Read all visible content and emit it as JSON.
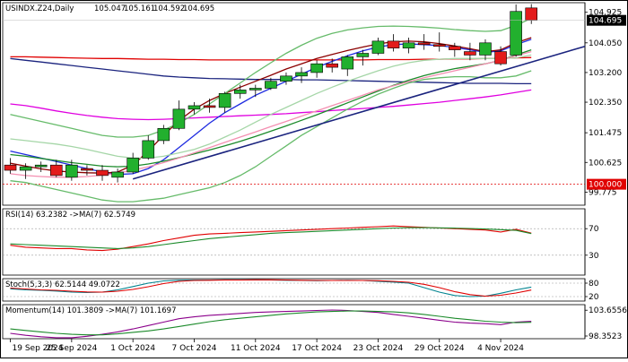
{
  "chart_data": [
    {
      "type": "candlestick",
      "title": "USINDX.Z24,Daily",
      "ohlc_readout": [
        "105.047",
        "105.161",
        "104.592",
        "104.695"
      ],
      "last_price": "104.695",
      "last_price_color": "#000000",
      "ylim": [
        99.4,
        105.2
      ],
      "y_ticks": [
        "104.925",
        "104.050",
        "103.200",
        "102.350",
        "101.475",
        "100.625",
        "99.775"
      ],
      "y_tick_values": [
        104.925,
        104.05,
        103.2,
        102.35,
        101.475,
        100.625,
        99.775
      ],
      "level_label": "100.000",
      "level_value": 100.0,
      "level_color": "#e00000",
      "grid": false,
      "x_ticks": [
        "19 Sep 2024",
        "25 Sep 2024",
        "1 Oct 2024",
        "7 Oct 2024",
        "11 Oct 2024",
        "17 Oct 2024",
        "23 Oct 2024",
        "29 Oct 2024",
        "4 Nov 2024"
      ],
      "x_tick_index": [
        0,
        4,
        8,
        12,
        16,
        20,
        24,
        28,
        32
      ],
      "colors": {
        "up": "#22b02e",
        "down": "#e31b1b"
      },
      "candles": [
        {
          "o": 100.55,
          "h": 100.75,
          "l": 100.3,
          "c": 100.4
        },
        {
          "o": 100.4,
          "h": 100.6,
          "l": 100.15,
          "c": 100.5
        },
        {
          "o": 100.5,
          "h": 100.65,
          "l": 100.35,
          "c": 100.55
        },
        {
          "o": 100.55,
          "h": 100.7,
          "l": 100.2,
          "c": 100.25
        },
        {
          "o": 100.2,
          "h": 100.7,
          "l": 100.1,
          "c": 100.55
        },
        {
          "o": 100.45,
          "h": 100.55,
          "l": 100.25,
          "c": 100.4
        },
        {
          "o": 100.4,
          "h": 100.55,
          "l": 100.1,
          "c": 100.25
        },
        {
          "o": 100.2,
          "h": 100.45,
          "l": 100.05,
          "c": 100.35
        },
        {
          "o": 100.35,
          "h": 100.9,
          "l": 100.3,
          "c": 100.75
        },
        {
          "o": 100.75,
          "h": 101.4,
          "l": 100.7,
          "c": 101.25
        },
        {
          "o": 101.25,
          "h": 101.7,
          "l": 101.15,
          "c": 101.6
        },
        {
          "o": 101.6,
          "h": 102.4,
          "l": 101.55,
          "c": 102.15
        },
        {
          "o": 102.15,
          "h": 102.35,
          "l": 102.0,
          "c": 102.25
        },
        {
          "o": 102.25,
          "h": 102.45,
          "l": 102.05,
          "c": 102.2
        },
        {
          "o": 102.2,
          "h": 102.65,
          "l": 102.05,
          "c": 102.6
        },
        {
          "o": 102.6,
          "h": 102.85,
          "l": 102.45,
          "c": 102.7
        },
        {
          "o": 102.7,
          "h": 102.85,
          "l": 102.5,
          "c": 102.75
        },
        {
          "o": 102.75,
          "h": 103.05,
          "l": 102.7,
          "c": 102.95
        },
        {
          "o": 102.95,
          "h": 103.2,
          "l": 102.85,
          "c": 103.1
        },
        {
          "o": 103.1,
          "h": 103.35,
          "l": 102.9,
          "c": 103.2
        },
        {
          "o": 103.2,
          "h": 103.55,
          "l": 103.05,
          "c": 103.45
        },
        {
          "o": 103.45,
          "h": 103.6,
          "l": 103.2,
          "c": 103.35
        },
        {
          "o": 103.3,
          "h": 103.7,
          "l": 103.1,
          "c": 103.65
        },
        {
          "o": 103.65,
          "h": 103.85,
          "l": 103.4,
          "c": 103.75
        },
        {
          "o": 103.75,
          "h": 104.2,
          "l": 103.7,
          "c": 104.1
        },
        {
          "o": 104.1,
          "h": 104.3,
          "l": 103.8,
          "c": 103.9
        },
        {
          "o": 103.9,
          "h": 104.2,
          "l": 103.75,
          "c": 104.05
        },
        {
          "o": 104.05,
          "h": 104.3,
          "l": 103.85,
          "c": 104.0
        },
        {
          "o": 104.0,
          "h": 104.35,
          "l": 103.8,
          "c": 103.95
        },
        {
          "o": 103.95,
          "h": 104.05,
          "l": 103.65,
          "c": 103.85
        },
        {
          "o": 103.8,
          "h": 104.05,
          "l": 103.55,
          "c": 103.7
        },
        {
          "o": 103.7,
          "h": 104.15,
          "l": 103.55,
          "c": 104.05
        },
        {
          "o": 103.8,
          "h": 103.95,
          "l": 103.4,
          "c": 103.45
        },
        {
          "o": 103.7,
          "h": 105.15,
          "l": 103.65,
          "c": 104.95
        },
        {
          "o": 105.05,
          "h": 105.16,
          "l": 104.59,
          "c": 104.7
        }
      ],
      "series": [
        {
          "color": "#e00000",
          "values": [
            103.65,
            103.65,
            103.64,
            103.63,
            103.62,
            103.61,
            103.6,
            103.6,
            103.59,
            103.58,
            103.58,
            103.57,
            103.57,
            103.56,
            103.56,
            103.56,
            103.56,
            103.56,
            103.56,
            103.56,
            103.56,
            103.56,
            103.56,
            103.56,
            103.57,
            103.57,
            103.57,
            103.58,
            103.58,
            103.59,
            103.59,
            103.6,
            103.61,
            103.62,
            103.63
          ]
        },
        {
          "color": "#1a237e",
          "values": [
            103.6,
            103.55,
            103.5,
            103.45,
            103.4,
            103.35,
            103.3,
            103.25,
            103.2,
            103.15,
            103.1,
            103.07,
            103.05,
            103.03,
            103.02,
            103.01,
            103.0,
            103.0,
            103.0,
            102.99,
            102.99,
            102.98,
            102.97,
            102.96,
            102.95,
            102.94,
            102.93,
            102.92,
            102.91,
            102.9,
            102.89,
            102.89,
            102.89,
            102.88,
            102.88
          ]
        },
        {
          "color": "#e000e0",
          "values": [
            102.3,
            102.25,
            102.18,
            102.1,
            102.03,
            101.97,
            101.92,
            101.88,
            101.86,
            101.85,
            101.86,
            101.88,
            101.9,
            101.92,
            101.94,
            101.96,
            101.98,
            102.0,
            102.02,
            102.05,
            102.08,
            102.11,
            102.14,
            102.17,
            102.2,
            102.23,
            102.27,
            102.31,
            102.35,
            102.4,
            102.45,
            102.5,
            102.56,
            102.63,
            102.7
          ]
        },
        {
          "color": "#1e2be0",
          "values": [
            100.95,
            100.85,
            100.75,
            100.65,
            100.55,
            100.45,
            100.35,
            100.28,
            100.3,
            100.45,
            100.7,
            101.05,
            101.4,
            101.75,
            102.05,
            102.3,
            102.55,
            102.75,
            102.95,
            103.15,
            103.35,
            103.52,
            103.68,
            103.82,
            103.93,
            104.0,
            104.02,
            104.0,
            103.97,
            103.92,
            103.85,
            103.78,
            103.82,
            104.0,
            104.15
          ]
        },
        {
          "color": "#8b0000",
          "values": [
            100.6,
            100.52,
            100.44,
            100.38,
            100.35,
            100.33,
            100.32,
            100.35,
            100.55,
            100.95,
            101.4,
            101.82,
            102.15,
            102.4,
            102.6,
            102.78,
            102.95,
            103.12,
            103.3,
            103.45,
            103.6,
            103.72,
            103.83,
            103.93,
            104.02,
            104.08,
            104.1,
            104.08,
            104.03,
            103.96,
            103.88,
            103.8,
            103.85,
            104.05,
            104.2
          ]
        },
        {
          "color": "#1b8a2a",
          "values": [
            100.85,
            100.8,
            100.74,
            100.68,
            100.62,
            100.57,
            100.52,
            100.5,
            100.52,
            100.58,
            100.66,
            100.76,
            100.87,
            100.98,
            101.1,
            101.23,
            101.37,
            101.52,
            101.67,
            101.83,
            101.99,
            102.16,
            102.33,
            102.5,
            102.67,
            102.83,
            102.98,
            103.11,
            103.22,
            103.31,
            103.38,
            103.45,
            103.55,
            103.7,
            103.85
          ]
        },
        {
          "color": "#a5d6a7",
          "values": [
            101.3,
            101.25,
            101.2,
            101.15,
            101.08,
            101.0,
            100.9,
            100.8,
            100.75,
            100.75,
            100.8,
            100.9,
            101.0,
            101.15,
            101.35,
            101.55,
            101.78,
            102.0,
            102.2,
            102.4,
            102.6,
            102.78,
            102.95,
            103.1,
            103.25,
            103.38,
            103.48,
            103.55,
            103.58,
            103.6,
            103.6,
            103.6,
            103.6,
            103.62,
            103.7
          ]
        },
        {
          "color": "#f48fb1",
          "values": [
            100.3,
            100.25,
            100.22,
            100.2,
            100.2,
            100.22,
            100.26,
            100.32,
            100.4,
            100.5,
            100.62,
            100.75,
            100.9,
            101.05,
            101.2,
            101.35,
            101.5,
            101.65,
            101.8,
            101.95,
            102.1,
            102.25,
            102.4,
            102.55,
            102.7,
            102.82,
            102.94,
            103.05,
            103.15,
            103.25,
            103.35,
            103.45,
            103.55,
            103.68,
            103.8
          ]
        },
        {
          "color": "#66bb6a",
          "values": [
            102.0,
            101.9,
            101.8,
            101.7,
            101.6,
            101.5,
            101.4,
            101.35,
            101.35,
            101.4,
            101.55,
            101.75,
            102.0,
            102.3,
            102.6,
            102.9,
            103.2,
            103.48,
            103.75,
            103.98,
            104.18,
            104.32,
            104.42,
            104.48,
            104.52,
            104.53,
            104.52,
            104.5,
            104.47,
            104.43,
            104.4,
            104.38,
            104.4,
            104.55,
            104.75
          ]
        },
        {
          "color": "#66bb6a",
          "values": [
            100.1,
            100.05,
            99.95,
            99.85,
            99.75,
            99.65,
            99.55,
            99.5,
            99.5,
            99.55,
            99.6,
            99.7,
            99.8,
            99.9,
            100.05,
            100.25,
            100.5,
            100.8,
            101.1,
            101.4,
            101.65,
            101.9,
            102.15,
            102.38,
            102.58,
            102.75,
            102.9,
            103.0,
            103.05,
            103.08,
            103.08,
            103.05,
            103.05,
            103.1,
            103.25
          ]
        }
      ],
      "trendlines": [
        {
          "color": "#1a237e",
          "from": [
            8,
            100.15
          ],
          "to": [
            39,
            103.95
          ]
        }
      ]
    },
    {
      "type": "line",
      "title": "RSI(14) 63.2382 ->MA(7) 62.5749",
      "ylim": [
        0,
        100
      ],
      "y_ticks": [
        "70",
        "30"
      ],
      "y_tick_values": [
        70,
        30
      ],
      "levels": [
        70,
        30
      ],
      "grid": false,
      "series": [
        {
          "color": "#e00000",
          "values": [
            45,
            42,
            41,
            40,
            40,
            38,
            37,
            39,
            43,
            47,
            52,
            56,
            60,
            62,
            63,
            64,
            65,
            66,
            67,
            68,
            69,
            70,
            71,
            72,
            73,
            74,
            73,
            72,
            71,
            70,
            69,
            68,
            65,
            69,
            63.24
          ]
        },
        {
          "color": "#1b8a2a",
          "values": [
            47,
            46,
            45,
            44,
            43,
            42,
            41,
            40,
            41,
            43,
            46,
            49,
            52,
            55,
            57,
            59,
            61,
            63,
            64,
            65,
            66,
            67,
            68,
            69,
            70,
            71,
            71.5,
            71.5,
            71.2,
            70.8,
            70.2,
            69.5,
            68.5,
            67.5,
            62.57
          ]
        }
      ]
    },
    {
      "type": "line",
      "title": "Stoch(5,3,3) 62.5144 49.0722",
      "ylim": [
        0,
        100
      ],
      "y_ticks": [
        "80",
        "20"
      ],
      "y_tick_values": [
        80,
        20
      ],
      "levels": [
        80,
        20
      ],
      "grid": false,
      "series": [
        {
          "color": "#00838f",
          "values": [
            55,
            50,
            48,
            45,
            40,
            38,
            40,
            50,
            65,
            80,
            90,
            93,
            94,
            94,
            95,
            95,
            95,
            94,
            93,
            92,
            91,
            92,
            93,
            92,
            88,
            85,
            80,
            60,
            40,
            25,
            20,
            22,
            35,
            50,
            62.51
          ]
        },
        {
          "color": "#e00000",
          "values": [
            58,
            54,
            50,
            48,
            44,
            41,
            40,
            44,
            52,
            64,
            78,
            88,
            92,
            93,
            94,
            94,
            95,
            95,
            94,
            93,
            92,
            92,
            92,
            92,
            91,
            88,
            84,
            75,
            60,
            42,
            29,
            22,
            26,
            36,
            49.07
          ]
        }
      ]
    },
    {
      "type": "line",
      "title": "Momentum(14) 101.3809 ->MA(7) 101.1697",
      "ylim": [
        97.8,
        104.8
      ],
      "y_ticks": [
        "103.6556",
        "98.3523"
      ],
      "y_tick_values": [
        103.6556,
        98.3523
      ],
      "grid": false,
      "series": [
        {
          "color": "#8b008b",
          "values": [
            98.9,
            98.5,
            98.2,
            98.0,
            98.0,
            98.3,
            98.7,
            99.2,
            99.8,
            100.5,
            101.2,
            101.9,
            102.3,
            102.6,
            102.8,
            103.0,
            103.2,
            103.3,
            103.4,
            103.5,
            103.6,
            103.7,
            103.6,
            103.4,
            103.2,
            102.8,
            102.4,
            102.0,
            101.6,
            101.2,
            101.0,
            100.9,
            100.7,
            101.2,
            101.38
          ]
        },
        {
          "color": "#1b8a2a",
          "values": [
            99.8,
            99.5,
            99.2,
            98.9,
            98.7,
            98.6,
            98.6,
            98.8,
            99.1,
            99.4,
            99.8,
            100.3,
            100.8,
            101.3,
            101.7,
            102.0,
            102.3,
            102.6,
            102.9,
            103.1,
            103.3,
            103.4,
            103.5,
            103.5,
            103.4,
            103.3,
            103.1,
            102.8,
            102.4,
            102.0,
            101.7,
            101.4,
            101.2,
            101.1,
            101.17
          ]
        }
      ]
    }
  ]
}
